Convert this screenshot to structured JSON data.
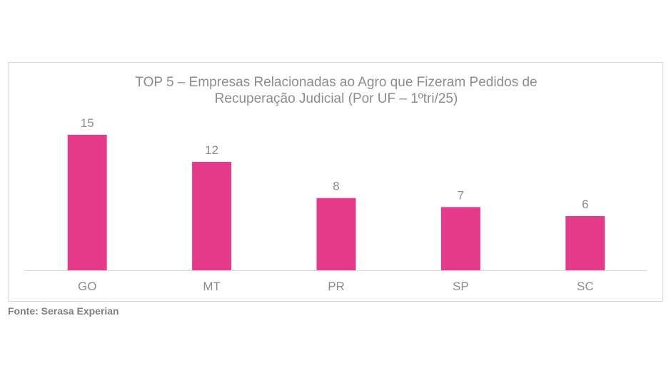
{
  "chart_data": {
    "type": "bar",
    "title_lines": [
      "TOP 5 – Empresas Relacionadas ao Agro que Fizeram Pedidos de",
      "Recuperação Judicial (Por UF – 1ºtri/25)"
    ],
    "categories": [
      "GO",
      "MT",
      "PR",
      "SP",
      "SC"
    ],
    "values": [
      15,
      12,
      8,
      7,
      6
    ],
    "ylim": [
      0,
      15
    ],
    "grid": false,
    "legend": "none",
    "data_labels": true,
    "bar_color": "#e63b8b",
    "text_color": "#8c8c8c",
    "axis_color": "#d9d9d9"
  },
  "source": "Fonte: Serasa Experian"
}
